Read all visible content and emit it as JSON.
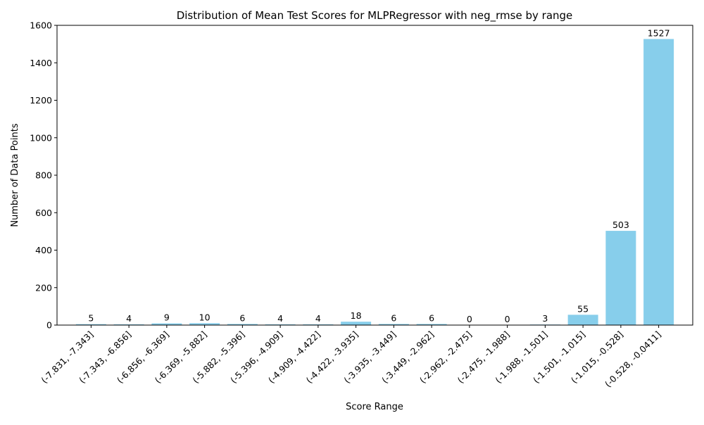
{
  "chart_data": {
    "type": "bar",
    "title": "Distribution of Mean Test Scores for MLPRegressor with neg_rmse by range",
    "xlabel": "Score Range",
    "ylabel": "Number of Data Points",
    "categories": [
      "(-7.831, -7.343]",
      "(-7.343, -6.856]",
      "(-6.856, -6.369]",
      "(-6.369, -5.882]",
      "(-5.882, -5.396]",
      "(-5.396, -4.909]",
      "(-4.909, -4.422]",
      "(-4.422, -3.935]",
      "(-3.935, -3.449]",
      "(-3.449, -2.962]",
      "(-2.962, -2.475]",
      "(-2.475, -1.988]",
      "(-1.988, -1.501]",
      "(-1.501, -1.015]",
      "(-1.015, -0.528]",
      "(-0.528, -0.0411]"
    ],
    "values": [
      5,
      4,
      9,
      10,
      6,
      4,
      4,
      18,
      6,
      6,
      0,
      0,
      3,
      55,
      503,
      1527
    ],
    "ylim": [
      0,
      1600
    ],
    "yticks": [
      0,
      200,
      400,
      600,
      800,
      1000,
      1200,
      1400,
      1600
    ],
    "bar_color": "#87CEEB",
    "grid": false,
    "legend": "none",
    "data_labels": true
  }
}
